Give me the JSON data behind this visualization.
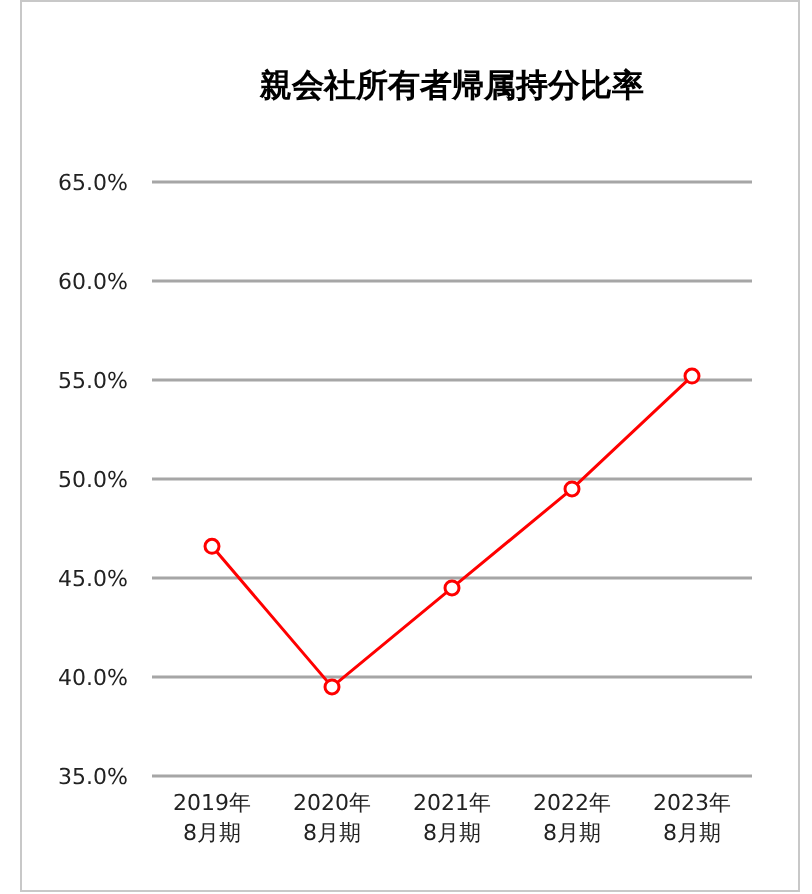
{
  "chart_data": {
    "type": "line",
    "title": "親会社所有者帰属持分比率",
    "categories": [
      "2019年\n8月期",
      "2020年\n8月期",
      "2021年\n8月期",
      "2022年\n8月期",
      "2023年\n8月期"
    ],
    "series": [
      {
        "color": "#ff0000",
        "values": [
          46.6,
          39.5,
          44.5,
          49.5,
          55.2
        ]
      }
    ],
    "ylim": [
      35,
      65
    ],
    "yticks": [
      {
        "value": 35,
        "label": "35.0%"
      },
      {
        "value": 40,
        "label": "40.0%"
      },
      {
        "value": 45,
        "label": "45.0%"
      },
      {
        "value": 50,
        "label": "50.0%"
      },
      {
        "value": 55,
        "label": "55.0%"
      },
      {
        "value": 60,
        "label": "60.0%"
      },
      {
        "value": 65,
        "label": "65.0%"
      }
    ],
    "grid": "y",
    "marker": "circle",
    "line_style": "solid"
  }
}
